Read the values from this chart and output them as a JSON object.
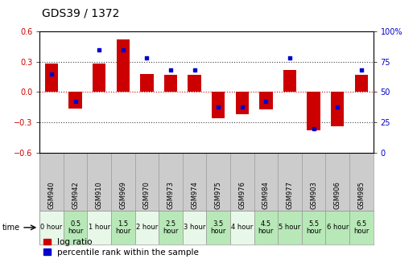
{
  "title": "GDS39 / 1372",
  "gsm_labels": [
    "GSM940",
    "GSM942",
    "GSM910",
    "GSM969",
    "GSM970",
    "GSM973",
    "GSM974",
    "GSM975",
    "GSM976",
    "GSM984",
    "GSM977",
    "GSM903",
    "GSM906",
    "GSM985"
  ],
  "time_labels": [
    "0 hour",
    "0.5\nhour",
    "1 hour",
    "1.5\nhour",
    "2 hour",
    "2.5\nhour",
    "3 hour",
    "3.5\nhour",
    "4 hour",
    "4.5\nhour",
    "5 hour",
    "5.5\nhour",
    "6 hour",
    "6.5\nhour"
  ],
  "time_shading": [
    0,
    1,
    0,
    1,
    0,
    1,
    0,
    1,
    0,
    1,
    1,
    1,
    1,
    1
  ],
  "log_ratio": [
    0.28,
    -0.16,
    0.28,
    0.52,
    0.18,
    0.17,
    0.17,
    -0.26,
    -0.22,
    -0.17,
    0.22,
    -0.38,
    -0.34,
    0.17
  ],
  "percentile": [
    65,
    42,
    85,
    85,
    78,
    68,
    68,
    38,
    38,
    42,
    78,
    20,
    38,
    68
  ],
  "bar_color": "#cc0000",
  "dot_color": "#0000cc",
  "bg_color": "#ffffff",
  "plot_bg": "#ffffff",
  "gsm_bg": "#cccccc",
  "time_bg_even": "#e8f8e8",
  "time_bg_odd": "#b8e8b8",
  "ylim_left": [
    -0.6,
    0.6
  ],
  "ylim_right": [
    0,
    100
  ],
  "yticks_left": [
    -0.6,
    -0.3,
    0.0,
    0.3,
    0.6
  ],
  "yticks_right": [
    0,
    25,
    50,
    75,
    100
  ],
  "hline_dotted": [
    0.3,
    -0.3
  ],
  "zero_line_color": "#cc0000",
  "dotted_color": "#444444",
  "bar_width": 0.55,
  "gsm_label_fontsize": 6.0,
  "time_label_fontsize": 6.0,
  "title_fontsize": 10,
  "legend_fontsize": 7.5,
  "axis_fontsize": 7.0
}
